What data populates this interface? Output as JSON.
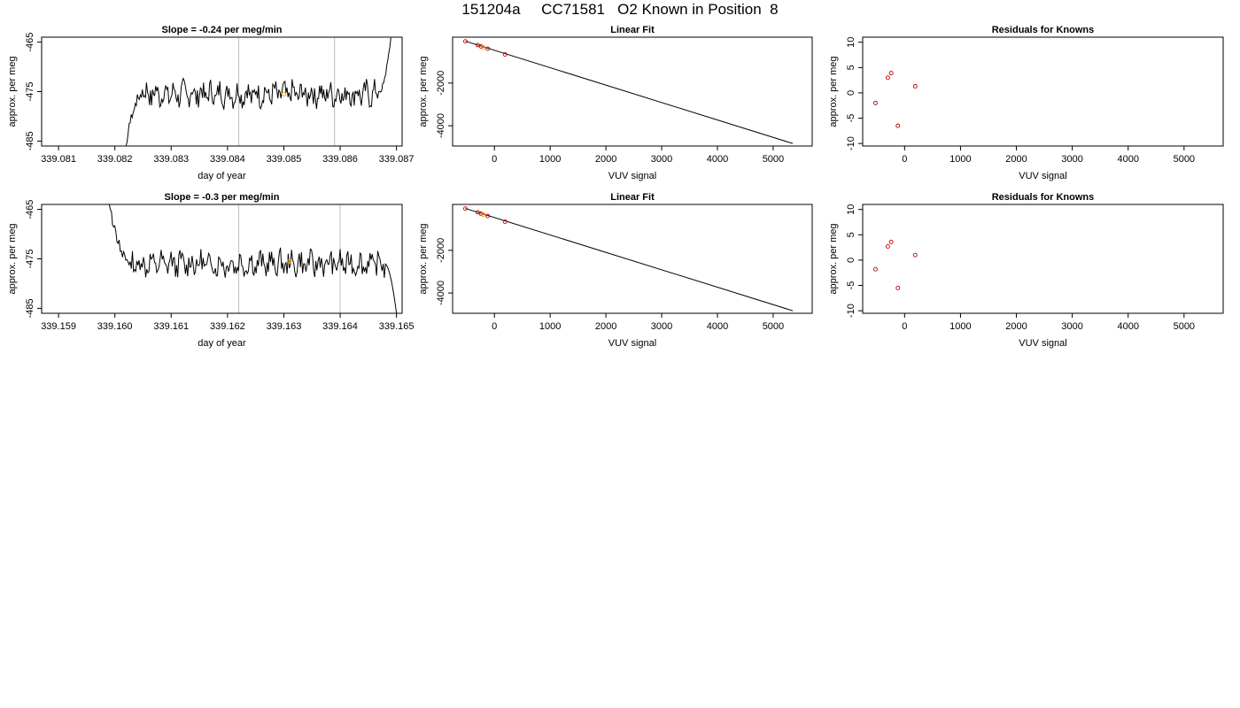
{
  "title": "151204a     CC71581   O2 Known in Position  8",
  "chart_data": [
    {
      "id": "row1-timeseries",
      "type": "line",
      "title": "Slope =  -0.24  per meg/min",
      "xlabel": "day of year",
      "ylabel": "approx. per meg",
      "xlim": [
        339.0807,
        339.0871
      ],
      "ylim": [
        -486,
        -464
      ],
      "xticks": [
        339.081,
        339.082,
        339.083,
        339.084,
        339.085,
        339.086,
        339.087
      ],
      "xtick_labels": [
        "339.081",
        "339.082",
        "339.083",
        "339.084",
        "339.085",
        "339.086",
        "339.087"
      ],
      "yticks": [
        -465,
        -475,
        -485
      ],
      "ytick_labels": [
        "-465",
        "-475",
        "-485"
      ],
      "vlines": [
        339.0842,
        339.0859
      ],
      "signal": {
        "x_start": 339.0822,
        "x_end": 339.0869,
        "baseline": -475.5,
        "ramp_down_to": -486,
        "ramp_up_to": -464,
        "seed": 7
      },
      "highlight_points": [
        {
          "x": 339.085,
          "y": -475.5
        }
      ],
      "colors": {
        "line": "#000000",
        "vline": "#bebebe",
        "highlight": "#ffa500"
      }
    },
    {
      "id": "row1-fit",
      "type": "scatter",
      "title": "Linear Fit",
      "xlabel": "VUV signal",
      "ylabel": "approx. per meg",
      "xlim": [
        -750,
        5700
      ],
      "ylim": [
        -4950,
        150
      ],
      "xticks": [
        0,
        1000,
        2000,
        3000,
        4000,
        5000
      ],
      "xtick_labels": [
        "0",
        "1000",
        "2000",
        "3000",
        "4000",
        "5000"
      ],
      "yticks": [
        -2000,
        -4000
      ],
      "ytick_labels": [
        "-2000",
        "-4000"
      ],
      "line": {
        "x": [
          -520,
          5350
        ],
        "y": [
          -40,
          -4830
        ]
      },
      "points": {
        "x": [
          -520,
          -300,
          -240,
          -120,
          190
        ],
        "y": [
          -45,
          -220,
          -285,
          -390,
          -660
        ]
      },
      "highlight_points": [
        {
          "x": -200,
          "y": -330
        }
      ],
      "colors": {
        "point": "#c00000",
        "line": "#000000",
        "highlight": "#ffa500"
      }
    },
    {
      "id": "row1-residuals",
      "type": "scatter",
      "title": "Residuals for Knowns",
      "xlabel": "VUV signal",
      "ylabel": "approx. per meg",
      "xlim": [
        -750,
        5700
      ],
      "ylim": [
        -10.5,
        11
      ],
      "xticks": [
        0,
        1000,
        2000,
        3000,
        4000,
        5000
      ],
      "xtick_labels": [
        "0",
        "1000",
        "2000",
        "3000",
        "4000",
        "5000"
      ],
      "yticks": [
        10,
        5,
        0,
        -5,
        -10
      ],
      "ytick_labels": [
        "10",
        "5",
        "0",
        "-5",
        "-10"
      ],
      "points": {
        "x": [
          -520,
          -300,
          -240,
          -120,
          190
        ],
        "y": [
          -2,
          3,
          3.9,
          -6.5,
          1.3
        ]
      },
      "colors": {
        "point": "#c00000"
      }
    },
    {
      "id": "row2-timeseries",
      "type": "line",
      "title": "Slope =  -0.3  per meg/min",
      "xlabel": "day of year",
      "ylabel": "approx. per meg",
      "xlim": [
        339.1587,
        339.1651
      ],
      "ylim": [
        -486,
        -464
      ],
      "xticks": [
        339.159,
        339.16,
        339.161,
        339.162,
        339.163,
        339.164,
        339.165
      ],
      "xtick_labels": [
        "339.159",
        "339.160",
        "339.161",
        "339.162",
        "339.163",
        "339.164",
        "339.165"
      ],
      "yticks": [
        -465,
        -475,
        -485
      ],
      "ytick_labels": [
        "-465",
        "-475",
        "-485"
      ],
      "vlines": [
        339.1622,
        339.164
      ],
      "signal": {
        "x_start": 339.1599,
        "x_end": 339.165,
        "baseline": -476,
        "ramp_down_from": -464,
        "ramp_end_to": -486,
        "seed": 13
      },
      "highlight_points": [
        {
          "x": 339.1631,
          "y": -475.5
        }
      ],
      "colors": {
        "line": "#000000",
        "vline": "#bebebe",
        "highlight": "#ffa500"
      }
    },
    {
      "id": "row2-fit",
      "type": "scatter",
      "title": "Linear Fit",
      "xlabel": "VUV signal",
      "ylabel": "approx. per meg",
      "xlim": [
        -750,
        5700
      ],
      "ylim": [
        -4950,
        150
      ],
      "xticks": [
        0,
        1000,
        2000,
        3000,
        4000,
        5000
      ],
      "xtick_labels": [
        "0",
        "1000",
        "2000",
        "3000",
        "4000",
        "5000"
      ],
      "yticks": [
        -2000,
        -4000
      ],
      "ytick_labels": [
        "-2000",
        "-4000"
      ],
      "line": {
        "x": [
          -520,
          5350
        ],
        "y": [
          -40,
          -4830
        ]
      },
      "points": {
        "x": [
          -520,
          -300,
          -240,
          -120,
          190
        ],
        "y": [
          -45,
          -220,
          -285,
          -390,
          -660
        ]
      },
      "highlight_points": [
        {
          "x": -200,
          "y": -330
        }
      ],
      "colors": {
        "point": "#c00000",
        "line": "#000000",
        "highlight": "#ffa500"
      }
    },
    {
      "id": "row2-residuals",
      "type": "scatter",
      "title": "Residuals for Knowns",
      "xlabel": "VUV signal",
      "ylabel": "approx. per meg",
      "xlim": [
        -750,
        5700
      ],
      "ylim": [
        -10.5,
        11
      ],
      "xticks": [
        0,
        1000,
        2000,
        3000,
        4000,
        5000
      ],
      "xtick_labels": [
        "0",
        "1000",
        "2000",
        "3000",
        "4000",
        "5000"
      ],
      "yticks": [
        10,
        5,
        0,
        -5,
        -10
      ],
      "ytick_labels": [
        "10",
        "5",
        "0",
        "-5",
        "-10"
      ],
      "points": {
        "x": [
          -520,
          -300,
          -240,
          -120,
          190
        ],
        "y": [
          -1.8,
          2.7,
          3.6,
          -5.5,
          1.0
        ]
      },
      "colors": {
        "point": "#c00000"
      }
    }
  ]
}
